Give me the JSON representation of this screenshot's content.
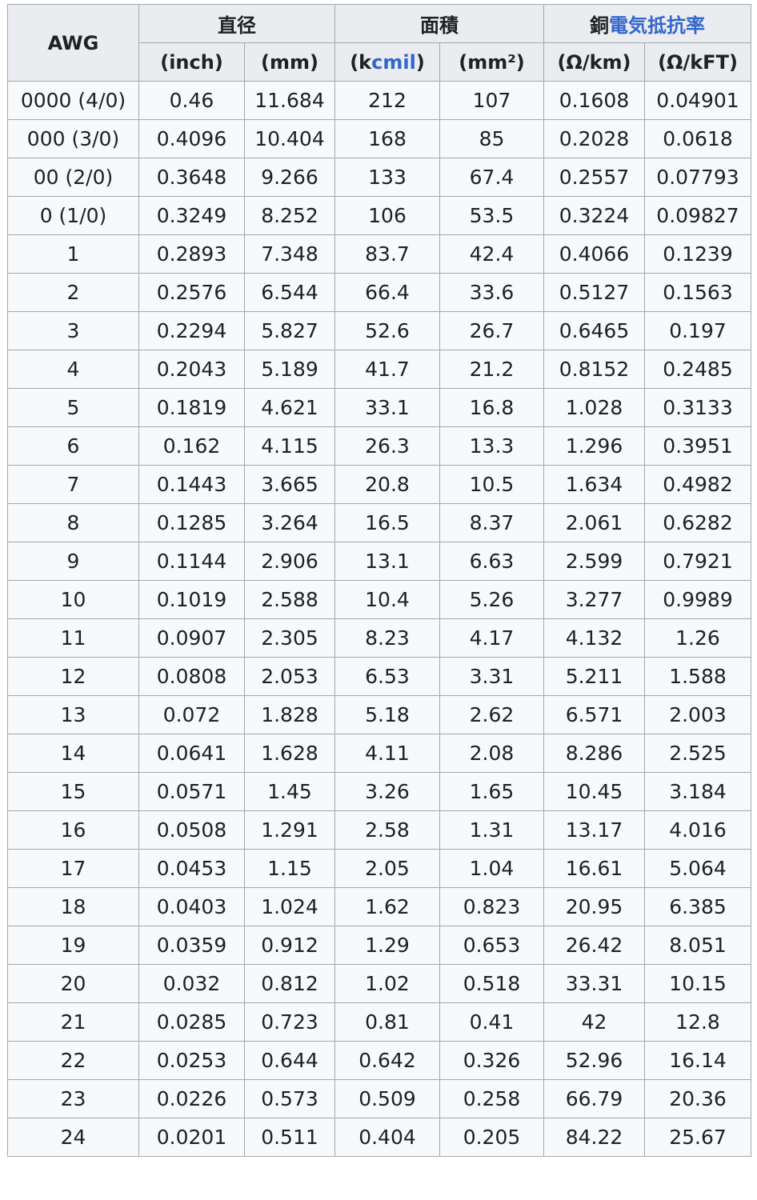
{
  "header": {
    "awg": "AWG",
    "diameter": "直径",
    "area": "面積",
    "resist_prefix": "銅",
    "resist_link": "電気抵抗率",
    "units": {
      "inch": "(inch)",
      "mm": "(mm)",
      "kcmil_open": "(k",
      "kcmil_link": "cmil",
      "kcmil_close": ")",
      "mm2": "(mm²)",
      "ohm_km": "(Ω/km)",
      "ohm_kft": "(Ω/kFT)"
    }
  },
  "link_color": "#3366cc",
  "rows": [
    [
      "0000 (4/0)",
      "0.46",
      "11.684",
      "212",
      "107",
      "0.1608",
      "0.04901"
    ],
    [
      "000 (3/0)",
      "0.4096",
      "10.404",
      "168",
      "85",
      "0.2028",
      "0.0618"
    ],
    [
      "00 (2/0)",
      "0.3648",
      "9.266",
      "133",
      "67.4",
      "0.2557",
      "0.07793"
    ],
    [
      "0 (1/0)",
      "0.3249",
      "8.252",
      "106",
      "53.5",
      "0.3224",
      "0.09827"
    ],
    [
      "1",
      "0.2893",
      "7.348",
      "83.7",
      "42.4",
      "0.4066",
      "0.1239"
    ],
    [
      "2",
      "0.2576",
      "6.544",
      "66.4",
      "33.6",
      "0.5127",
      "0.1563"
    ],
    [
      "3",
      "0.2294",
      "5.827",
      "52.6",
      "26.7",
      "0.6465",
      "0.197"
    ],
    [
      "4",
      "0.2043",
      "5.189",
      "41.7",
      "21.2",
      "0.8152",
      "0.2485"
    ],
    [
      "5",
      "0.1819",
      "4.621",
      "33.1",
      "16.8",
      "1.028",
      "0.3133"
    ],
    [
      "6",
      "0.162",
      "4.115",
      "26.3",
      "13.3",
      "1.296",
      "0.3951"
    ],
    [
      "7",
      "0.1443",
      "3.665",
      "20.8",
      "10.5",
      "1.634",
      "0.4982"
    ],
    [
      "8",
      "0.1285",
      "3.264",
      "16.5",
      "8.37",
      "2.061",
      "0.6282"
    ],
    [
      "9",
      "0.1144",
      "2.906",
      "13.1",
      "6.63",
      "2.599",
      "0.7921"
    ],
    [
      "10",
      "0.1019",
      "2.588",
      "10.4",
      "5.26",
      "3.277",
      "0.9989"
    ],
    [
      "11",
      "0.0907",
      "2.305",
      "8.23",
      "4.17",
      "4.132",
      "1.26"
    ],
    [
      "12",
      "0.0808",
      "2.053",
      "6.53",
      "3.31",
      "5.211",
      "1.588"
    ],
    [
      "13",
      "0.072",
      "1.828",
      "5.18",
      "2.62",
      "6.571",
      "2.003"
    ],
    [
      "14",
      "0.0641",
      "1.628",
      "4.11",
      "2.08",
      "8.286",
      "2.525"
    ],
    [
      "15",
      "0.0571",
      "1.45",
      "3.26",
      "1.65",
      "10.45",
      "3.184"
    ],
    [
      "16",
      "0.0508",
      "1.291",
      "2.58",
      "1.31",
      "13.17",
      "4.016"
    ],
    [
      "17",
      "0.0453",
      "1.15",
      "2.05",
      "1.04",
      "16.61",
      "5.064"
    ],
    [
      "18",
      "0.0403",
      "1.024",
      "1.62",
      "0.823",
      "20.95",
      "6.385"
    ],
    [
      "19",
      "0.0359",
      "0.912",
      "1.29",
      "0.653",
      "26.42",
      "8.051"
    ],
    [
      "20",
      "0.032",
      "0.812",
      "1.02",
      "0.518",
      "33.31",
      "10.15"
    ],
    [
      "21",
      "0.0285",
      "0.723",
      "0.81",
      "0.41",
      "42",
      "12.8"
    ],
    [
      "22",
      "0.0253",
      "0.644",
      "0.642",
      "0.326",
      "52.96",
      "16.14"
    ],
    [
      "23",
      "0.0226",
      "0.573",
      "0.509",
      "0.258",
      "66.79",
      "20.36"
    ],
    [
      "24",
      "0.0201",
      "0.511",
      "0.404",
      "0.205",
      "84.22",
      "25.67"
    ]
  ]
}
